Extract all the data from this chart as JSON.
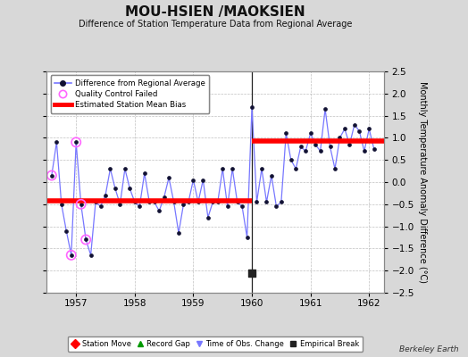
{
  "title": "MOU-HSIEN /MAOKSIEN",
  "subtitle": "Difference of Station Temperature Data from Regional Average",
  "ylabel": "Monthly Temperature Anomaly Difference (°C)",
  "xlim": [
    1956.5,
    1962.25
  ],
  "ylim": [
    -2.5,
    2.5
  ],
  "yticks": [
    -2.5,
    -2,
    -1.5,
    -1,
    -0.5,
    0,
    0.5,
    1,
    1.5,
    2,
    2.5
  ],
  "xticks": [
    1957,
    1958,
    1959,
    1960,
    1961,
    1962
  ],
  "background_color": "#d8d8d8",
  "plot_bg_color": "#ffffff",
  "bias1": -0.42,
  "bias2": 0.93,
  "bias1_start": 1956.5,
  "bias1_end": 1960.0,
  "bias2_start": 1960.0,
  "bias2_end": 1962.25,
  "break_y": -2.05,
  "empirical_break_x": 1960.0,
  "line_color": "#7777ff",
  "bias_color": "#ff0000",
  "qc_failed_color": "#ff66ff",
  "data_x": [
    1956.583,
    1956.667,
    1956.75,
    1956.833,
    1956.917,
    1957.0,
    1957.083,
    1957.167,
    1957.25,
    1957.333,
    1957.417,
    1957.5,
    1957.583,
    1957.667,
    1957.75,
    1957.833,
    1957.917,
    1958.0,
    1958.083,
    1958.167,
    1958.25,
    1958.333,
    1958.417,
    1958.5,
    1958.583,
    1958.667,
    1958.75,
    1958.833,
    1958.917,
    1959.0,
    1959.083,
    1959.167,
    1959.25,
    1959.333,
    1959.417,
    1959.5,
    1959.583,
    1959.667,
    1959.75,
    1959.833,
    1959.917,
    1960.0,
    1960.083,
    1960.167,
    1960.25,
    1960.333,
    1960.417,
    1960.5,
    1960.583,
    1960.667,
    1960.75,
    1960.833,
    1960.917,
    1961.0,
    1961.083,
    1961.167,
    1961.25,
    1961.333,
    1961.417,
    1961.5,
    1961.583,
    1961.667,
    1961.75,
    1961.833,
    1961.917,
    1962.0,
    1962.083
  ],
  "data_y": [
    0.15,
    0.9,
    -0.5,
    -1.1,
    -1.65,
    0.9,
    -0.5,
    -1.3,
    -1.65,
    -0.45,
    -0.55,
    -0.3,
    0.3,
    -0.15,
    -0.5,
    0.3,
    -0.15,
    -0.45,
    -0.55,
    0.2,
    -0.45,
    -0.45,
    -0.65,
    -0.35,
    0.1,
    -0.45,
    -1.15,
    -0.5,
    -0.45,
    0.05,
    -0.45,
    0.05,
    -0.8,
    -0.45,
    -0.45,
    0.3,
    -0.55,
    0.3,
    -0.45,
    -0.55,
    -1.25,
    1.7,
    -0.45,
    0.3,
    -0.45,
    0.15,
    -0.55,
    -0.45,
    1.1,
    0.5,
    0.3,
    0.8,
    0.7,
    1.1,
    0.85,
    0.7,
    1.65,
    0.8,
    0.3,
    1.0,
    1.2,
    0.85,
    1.3,
    1.15,
    0.7,
    1.2,
    0.75
  ],
  "qc_failed_x": [
    1956.583,
    1956.917,
    1957.0,
    1957.083,
    1957.167
  ],
  "qc_failed_y": [
    0.15,
    -1.65,
    0.9,
    -0.5,
    -1.3
  ],
  "vertical_line_x": 1960.0,
  "berkeley_earth_text": "Berkeley Earth"
}
